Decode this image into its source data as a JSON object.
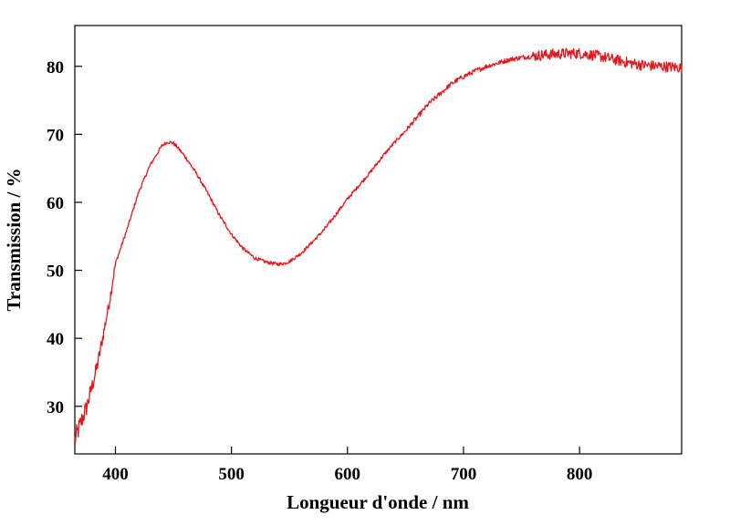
{
  "chart_data": {
    "type": "line",
    "title": "",
    "xlabel": "Longueur d'onde / nm",
    "ylabel": "Transmission / %",
    "xlim": [
      365,
      888
    ],
    "ylim": [
      23,
      86
    ],
    "xticks": [
      400,
      500,
      600,
      700,
      800
    ],
    "yticks": [
      30,
      40,
      50,
      60,
      70,
      80
    ],
    "grid": false,
    "legend": "none",
    "line_color": "#e8151b",
    "series": [
      {
        "x": [
          365,
          370,
          375,
          380,
          385,
          390,
          395,
          400,
          410,
          420,
          430,
          440,
          445,
          450,
          455,
          460,
          470,
          480,
          490,
          500,
          510,
          520,
          530,
          540,
          545,
          550,
          560,
          570,
          580,
          590,
          600,
          610,
          620,
          630,
          640,
          650,
          660,
          670,
          680,
          690,
          700,
          710,
          720,
          730,
          740,
          750,
          760,
          770,
          780,
          790,
          800,
          810,
          820,
          830,
          840,
          850,
          860,
          870,
          880,
          888
        ],
        "y": [
          25.0,
          27.5,
          29.8,
          33.0,
          36.5,
          41.0,
          45.5,
          51.0,
          56.0,
          61.5,
          65.5,
          68.3,
          68.9,
          68.7,
          67.8,
          66.7,
          64.2,
          61.2,
          58.0,
          55.3,
          53.2,
          51.8,
          51.2,
          50.9,
          51.0,
          51.3,
          52.5,
          54.2,
          56.0,
          58.2,
          60.5,
          62.5,
          64.5,
          66.7,
          68.7,
          70.5,
          72.5,
          74.5,
          76.0,
          77.5,
          78.5,
          79.3,
          80.0,
          80.5,
          81.0,
          81.3,
          81.5,
          81.7,
          81.8,
          81.9,
          81.9,
          81.7,
          81.4,
          81.0,
          80.6,
          80.3,
          80.1,
          80.0,
          79.9,
          79.8
        ]
      }
    ]
  }
}
